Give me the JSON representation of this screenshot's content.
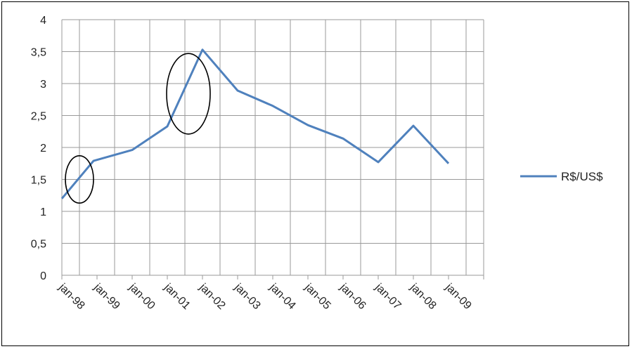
{
  "chart_data": {
    "type": "line",
    "title": "",
    "xlabel": "",
    "ylabel": "",
    "ylim": [
      0,
      4
    ],
    "yticks": [
      0,
      0.5,
      1,
      1.5,
      2,
      2.5,
      3,
      3.5,
      4
    ],
    "ytick_labels": [
      "0",
      "0,5",
      "1",
      "1,5",
      "2",
      "2,5",
      "3",
      "3,5",
      "4"
    ],
    "categories": [
      "jan-98",
      "jan-99",
      "jan-00",
      "jan-01",
      "jan-02",
      "jan-03",
      "jan-04",
      "jan-05",
      "jan-06",
      "jan-07",
      "jan-08",
      "jan-09"
    ],
    "grid": true,
    "legend_position": "right",
    "series": [
      {
        "name": "R$/US$",
        "color": "#4f81bd",
        "x": [
          -0.5,
          0.4,
          1.5,
          2.5,
          3.5,
          4.5,
          5.5,
          6.5,
          7.5,
          8.5,
          9.5,
          10.5
        ],
        "values": [
          1.2,
          1.79,
          1.96,
          2.33,
          3.53,
          2.89,
          2.65,
          2.35,
          2.14,
          1.77,
          2.34,
          1.75
        ]
      }
    ],
    "annotations": [
      {
        "type": "ellipse",
        "center": [
          0,
          1.5
        ],
        "radii": [
          0.4,
          0.37
        ]
      },
      {
        "type": "ellipse",
        "center": [
          3.1,
          2.84
        ],
        "radii": [
          0.62,
          0.63
        ]
      }
    ]
  }
}
